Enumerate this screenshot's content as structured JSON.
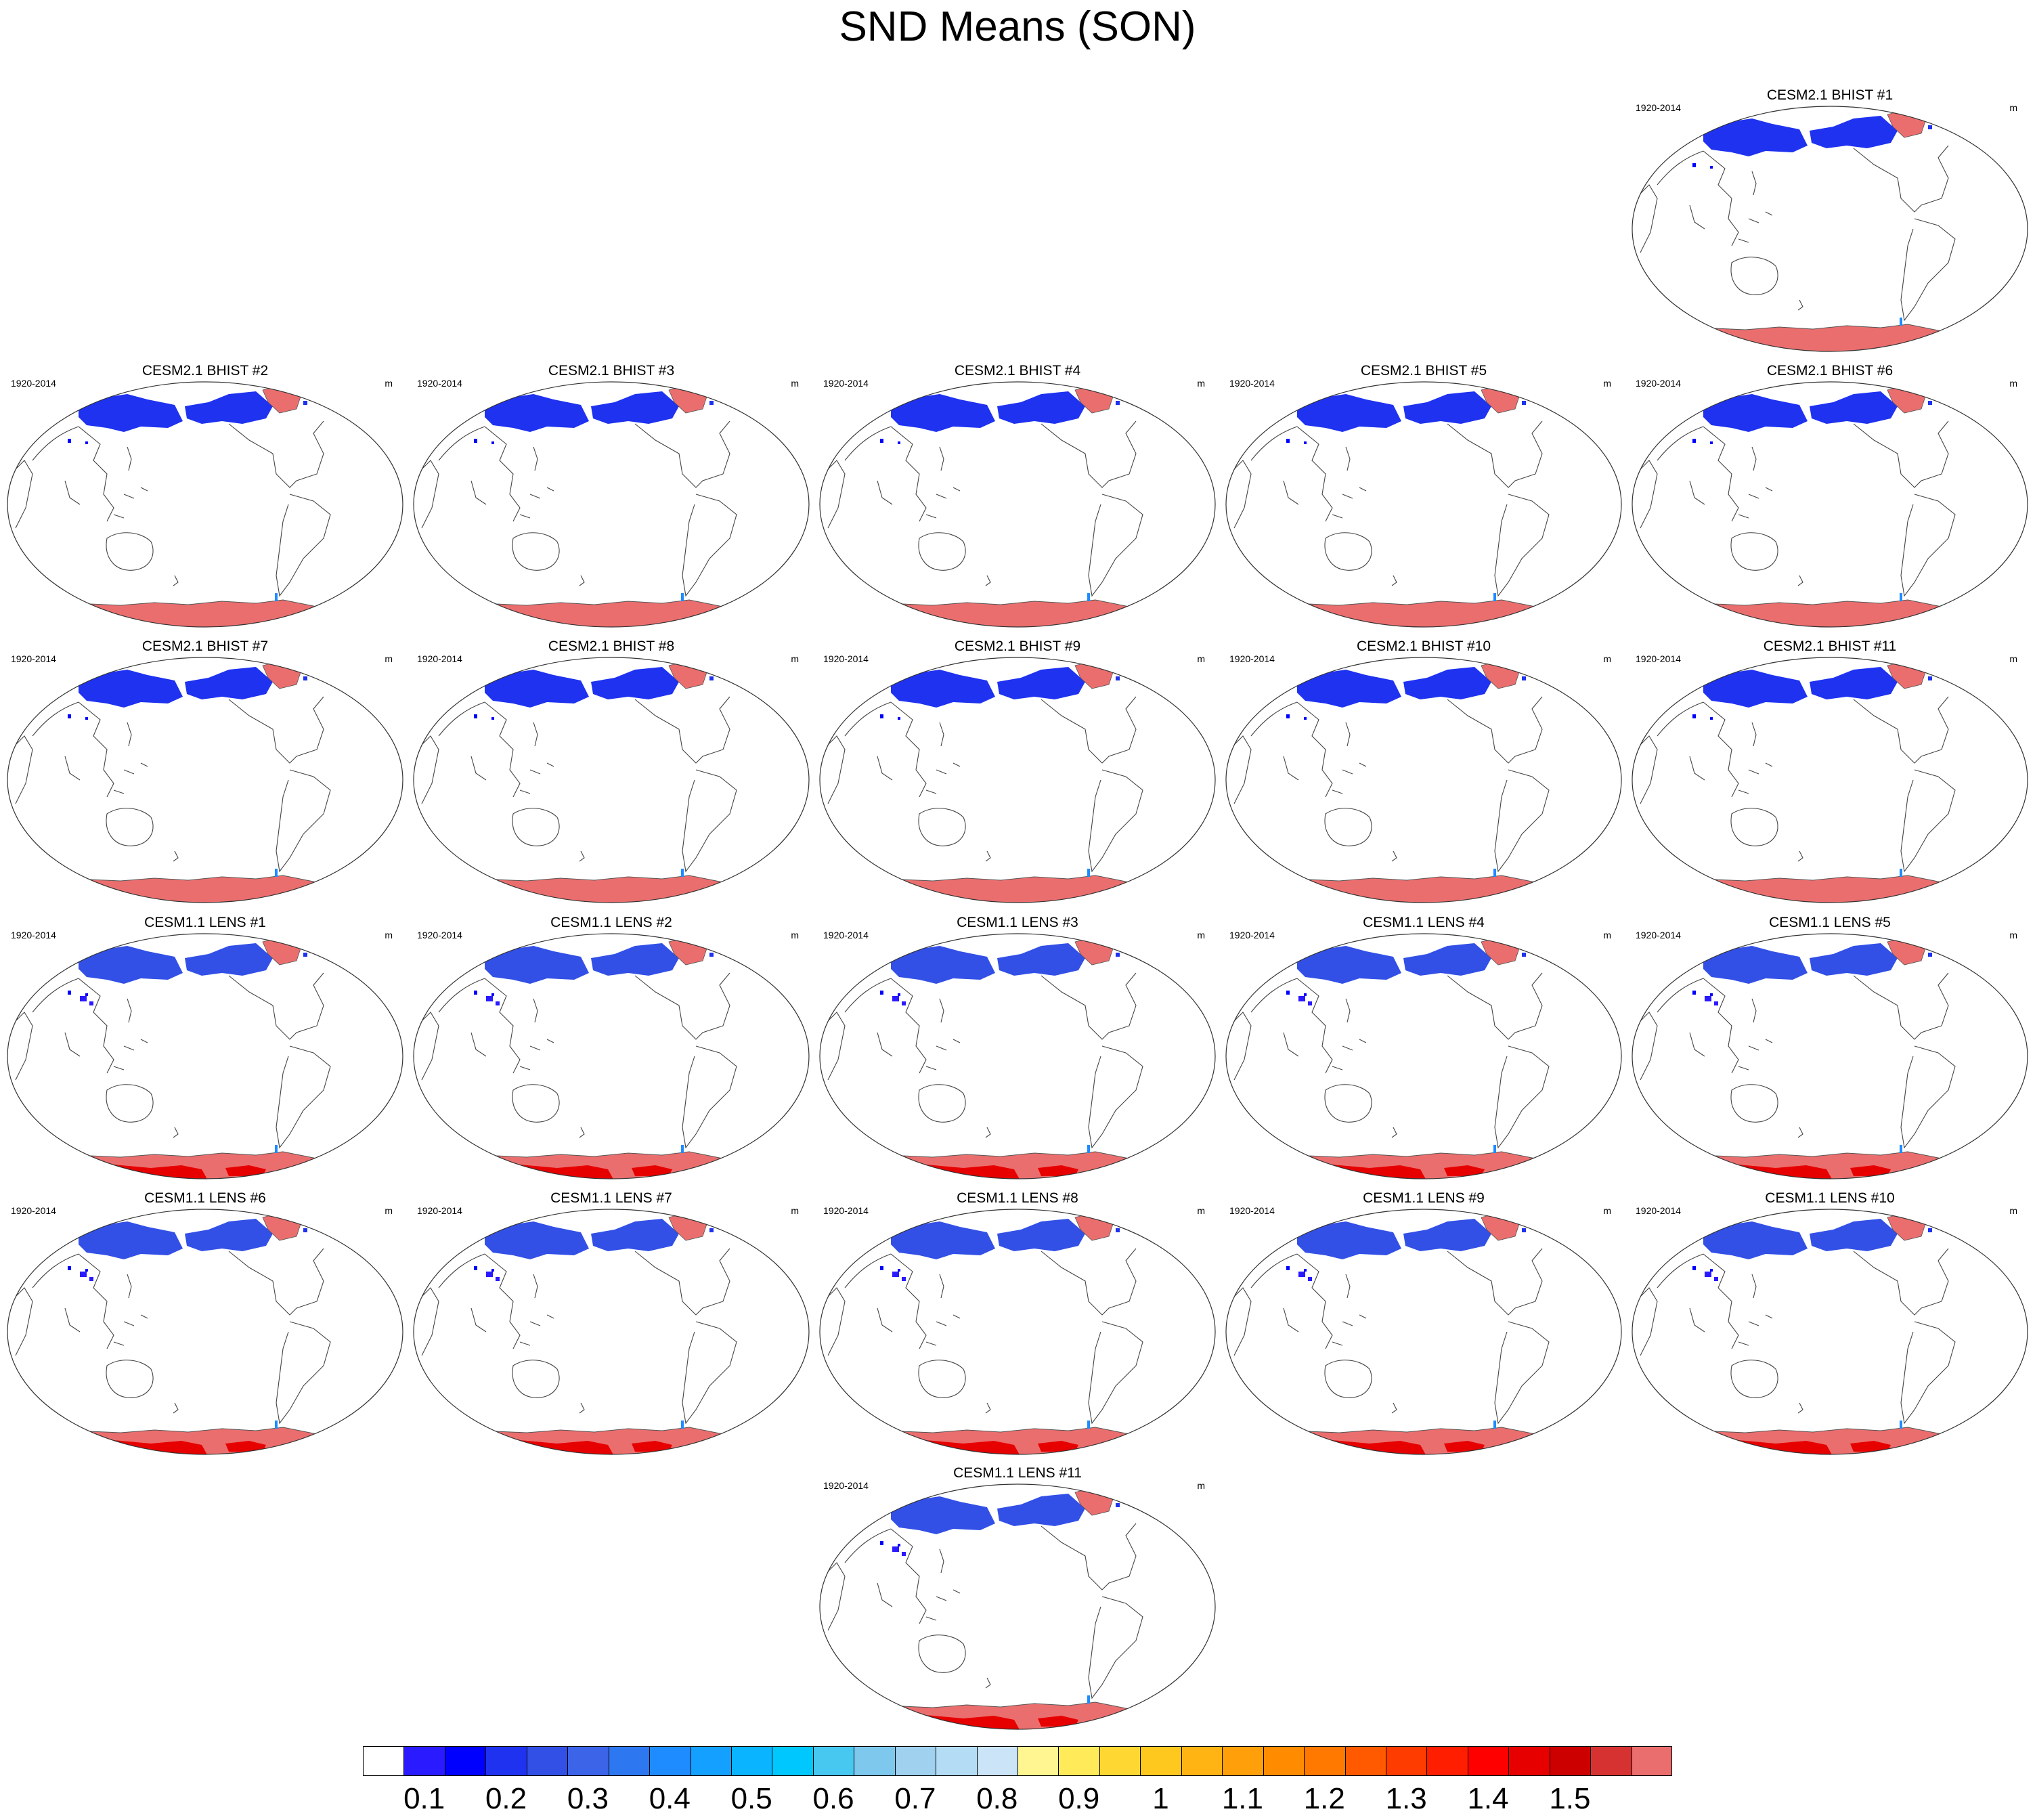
{
  "title": "SND Means (SON)",
  "period_label": "1920-2014",
  "units_label": "m",
  "panels": [
    {
      "title": "CESM2.1 BHIST #1",
      "model": "cesm2"
    },
    {
      "title": "CESM2.1 BHIST #2",
      "model": "cesm2"
    },
    {
      "title": "CESM2.1 BHIST #3",
      "model": "cesm2"
    },
    {
      "title": "CESM2.1 BHIST #4",
      "model": "cesm2"
    },
    {
      "title": "CESM2.1 BHIST #5",
      "model": "cesm2"
    },
    {
      "title": "CESM2.1 BHIST #6",
      "model": "cesm2"
    },
    {
      "title": "CESM2.1 BHIST #7",
      "model": "cesm2"
    },
    {
      "title": "CESM2.1 BHIST #8",
      "model": "cesm2"
    },
    {
      "title": "CESM2.1 BHIST #9",
      "model": "cesm2"
    },
    {
      "title": "CESM2.1 BHIST #10",
      "model": "cesm2"
    },
    {
      "title": "CESM2.1 BHIST #11",
      "model": "cesm2"
    },
    {
      "title": "CESM1.1 LENS #1",
      "model": "cesm1"
    },
    {
      "title": "CESM1.1 LENS #2",
      "model": "cesm1"
    },
    {
      "title": "CESM1.1 LENS #3",
      "model": "cesm1"
    },
    {
      "title": "CESM1.1 LENS #4",
      "model": "cesm1"
    },
    {
      "title": "CESM1.1 LENS #5",
      "model": "cesm1"
    },
    {
      "title": "CESM1.1 LENS #6",
      "model": "cesm1"
    },
    {
      "title": "CESM1.1 LENS #7",
      "model": "cesm1"
    },
    {
      "title": "CESM1.1 LENS #8",
      "model": "cesm1"
    },
    {
      "title": "CESM1.1 LENS #9",
      "model": "cesm1"
    },
    {
      "title": "CESM1.1 LENS #10",
      "model": "cesm1"
    },
    {
      "title": "CESM1.1 LENS #11",
      "model": "cesm1"
    }
  ],
  "colorbar": {
    "colors": [
      "#ffffff",
      "#2a1aff",
      "#0000ff",
      "#1e32f0",
      "#3250e6",
      "#3c64e8",
      "#2d78f0",
      "#1e8cff",
      "#14a0ff",
      "#0ab4ff",
      "#00c8ff",
      "#46c8f0",
      "#7dc8ec",
      "#a0d2f0",
      "#b4dcf4",
      "#cce4f8",
      "#fff591",
      "#ffeb5a",
      "#ffd732",
      "#ffc81e",
      "#ffb414",
      "#ffa00a",
      "#ff8c00",
      "#ff7800",
      "#ff5a00",
      "#ff3c00",
      "#ff1e00",
      "#ff0000",
      "#e60000",
      "#cd0000",
      "#d73232",
      "#eb6e6e"
    ],
    "tick_labels": [
      "0.1",
      "0.2",
      "0.3",
      "0.4",
      "0.5",
      "0.6",
      "0.7",
      "0.8",
      "0.9",
      "1",
      "1.1",
      "1.2",
      "1.3",
      "1.4",
      "1.5"
    ]
  }
}
